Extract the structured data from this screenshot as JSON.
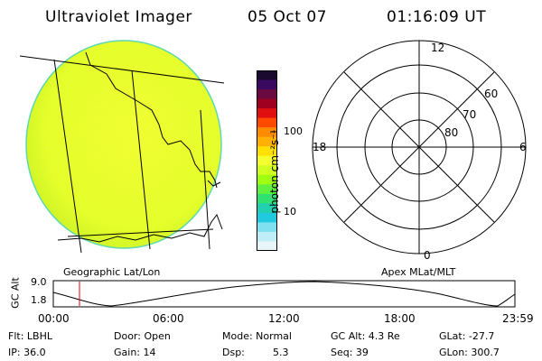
{
  "header": {
    "title": "Ultraviolet Imager",
    "date": "05 Oct 07",
    "time": "01:16:09 UT"
  },
  "earth_panel": {
    "caption": "Geographic Lat/Lon"
  },
  "colorbar": {
    "unit_label": "photon cm⁻²s⁻¹",
    "ticks": [
      "100",
      "10"
    ],
    "colors": [
      "#1a0a30",
      "#3a0a60",
      "#6a0a40",
      "#a00020",
      "#e01010",
      "#ff4a00",
      "#ff8c00",
      "#ffb000",
      "#ffe000",
      "#f4ff30",
      "#d0ff20",
      "#a0ff10",
      "#60f040",
      "#30e070",
      "#20d0b0",
      "#20c8e0",
      "#80e0f0",
      "#c0eef8",
      "#e8f6fa"
    ]
  },
  "polar_panel": {
    "caption": "Apex MLat/MLT",
    "mlt_labels": {
      "top": "12",
      "right": "6",
      "bottom": "0",
      "left": "18"
    },
    "lat_labels": [
      "60",
      "70",
      "80"
    ]
  },
  "timeline": {
    "ylabel": "GC Alt",
    "y_top": "9.0",
    "y_bottom": "1.8",
    "x_ticks": [
      "00:00",
      "06:00",
      "12:00",
      "18:00",
      "23:59"
    ]
  },
  "info": {
    "flt": "Flt: LBHL",
    "ip": "IP: 36.0",
    "door": "Door: Open",
    "gain": "Gain: 14",
    "mode": "Mode: Normal",
    "dsp_label": "Dsp:",
    "dsp_value": "5.3",
    "gc_alt": "GC Alt: 4.3 Re",
    "seq": "Seq: 39",
    "glat": "GLat: -27.7",
    "glon": "GLon: 300.7"
  }
}
